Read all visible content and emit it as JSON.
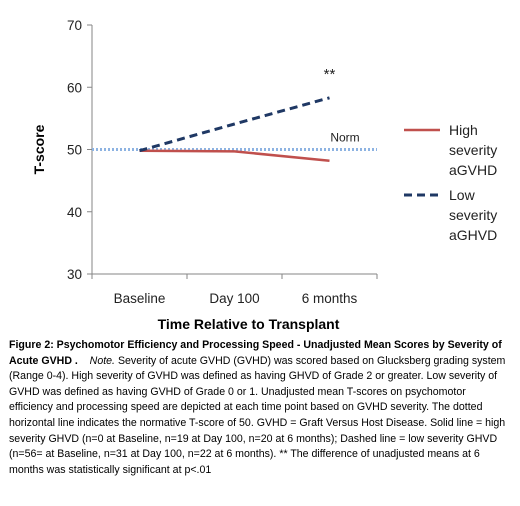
{
  "chart_data": {
    "type": "line",
    "categories": [
      "Baseline",
      "Day 100",
      "6 months"
    ],
    "series": [
      {
        "name": "High severity aGVHD",
        "values": [
          49.8,
          49.7,
          48.2
        ],
        "color": "#c0504d",
        "style": "solid",
        "legend_lines": [
          "High",
          "severity",
          "aGVHD"
        ]
      },
      {
        "name": "Low severity aGHVD",
        "values": [
          49.8,
          54.1,
          58.3
        ],
        "color": "#1f3864",
        "style": "dashed",
        "legend_lines": [
          "Low",
          "severity",
          "aGHVD"
        ]
      }
    ],
    "reference_line": {
      "value": 50,
      "label": "Norm",
      "color": "#8db3e2",
      "style": "dotted"
    },
    "annotation": {
      "text": "**",
      "x": "6 months",
      "y": 62
    },
    "xlabel": "Time Relative to Transplant",
    "ylabel": "T-score",
    "ylim": [
      30,
      70
    ],
    "yticks": [
      30,
      40,
      50,
      60,
      70
    ],
    "grid": false,
    "legend_position": "right"
  },
  "caption": {
    "title": "Figure 2: Psychomotor Efficiency and Processing Speed - Unadjusted Mean Scores by Severity of Acute GVHD .",
    "note_label": "Note.",
    "body": "Severity of acute GVHD (GVHD) was scored based on Glucksberg grading system (Range 0-4).  High severity of GVHD was defined as having GHVD of Grade 2 or greater. Low severity of GVHD was defined as having GVHD of Grade 0 or 1. Unadjusted mean T-scores on psychomotor efficiency and processing speed are depicted at each time point based on GVHD severity. The dotted horizontal line indicates the normative T-score of 50. GVHD = Graft Versus Host Disease. Solid line = high severity GHVD (n=0 at Baseline, n=19 at Day 100, n=20 at 6 months); Dashed line = low severity GHVD (n=56= at Baseline, n=31 at Day 100, n=22 at 6 months). ** The difference of unadjusted means at 6 months was statistically significant at p<.01"
  }
}
